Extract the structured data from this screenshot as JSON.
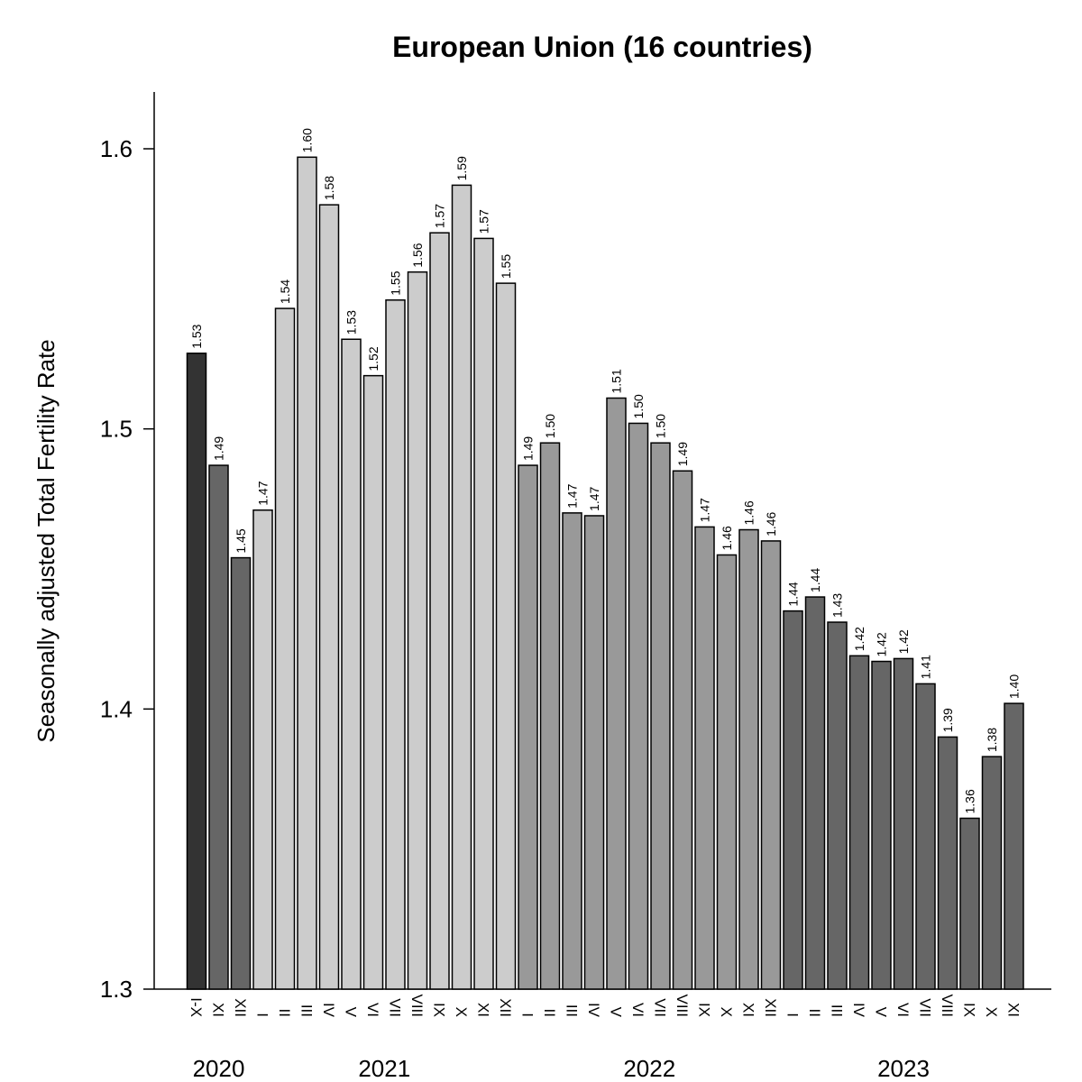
{
  "chart_data": {
    "type": "bar",
    "title": "European Union (16 countries)",
    "ylabel": "Seasonally adjusted Total Fertility Rate",
    "xlabel": "",
    "ylim": [
      1.3,
      1.62
    ],
    "yticks": [
      "1.3",
      "1.4",
      "1.5",
      "1.6"
    ],
    "grid": false,
    "legend": "none",
    "colors": {
      "2020_annual": "#333333",
      "2020_monthly": "#666666",
      "2021": "#cccccc",
      "2022": "#999999",
      "2023": "#666666"
    },
    "categories": [
      "I-X",
      "XI",
      "XII",
      "I",
      "II",
      "III",
      "IV",
      "V",
      "VI",
      "VII",
      "VIII",
      "IX",
      "X",
      "XI",
      "XII",
      "I",
      "II",
      "III",
      "IV",
      "V",
      "VI",
      "VII",
      "VIII",
      "IX",
      "X",
      "XI",
      "XII",
      "I",
      "II",
      "III",
      "IV",
      "V",
      "VI",
      "VII",
      "VIII",
      "IX",
      "X",
      "XI"
    ],
    "values": [
      1.527,
      1.487,
      1.454,
      1.471,
      1.543,
      1.597,
      1.58,
      1.532,
      1.519,
      1.546,
      1.556,
      1.57,
      1.587,
      1.568,
      1.552,
      1.487,
      1.495,
      1.47,
      1.469,
      1.511,
      1.502,
      1.495,
      1.485,
      1.465,
      1.455,
      1.464,
      1.46,
      1.435,
      1.44,
      1.431,
      1.419,
      1.417,
      1.418,
      1.409,
      1.39,
      1.361,
      1.383,
      1.402
    ],
    "data_labels": [
      "1.53",
      "1.49",
      "1.45",
      "1.47",
      "1.54",
      "1.60",
      "1.58",
      "1.53",
      "1.52",
      "1.55",
      "1.56",
      "1.57",
      "1.59",
      "1.57",
      "1.55",
      "1.49",
      "1.50",
      "1.47",
      "1.47",
      "1.51",
      "1.50",
      "1.50",
      "1.49",
      "1.47",
      "1.46",
      "1.46",
      "1.46",
      "1.44",
      "1.44",
      "1.43",
      "1.42",
      "1.42",
      "1.42",
      "1.41",
      "1.39",
      "1.36",
      "1.38",
      "1.40"
    ],
    "bar_groups": [
      "2020_annual",
      "2020_monthly",
      "2020_monthly",
      "2021",
      "2021",
      "2021",
      "2021",
      "2021",
      "2021",
      "2021",
      "2021",
      "2021",
      "2021",
      "2021",
      "2021",
      "2022",
      "2022",
      "2022",
      "2022",
      "2022",
      "2022",
      "2022",
      "2022",
      "2022",
      "2022",
      "2022",
      "2022",
      "2023",
      "2023",
      "2023",
      "2023",
      "2023",
      "2023",
      "2023",
      "2023",
      "2023",
      "2023",
      "2023"
    ],
    "year_labels": [
      {
        "label": "2020",
        "first": 0,
        "last": 2
      },
      {
        "label": "2021",
        "first": 3,
        "last": 14
      },
      {
        "label": "2022",
        "first": 15,
        "last": 26
      },
      {
        "label": "2023",
        "first": 27,
        "last": 37
      }
    ]
  }
}
